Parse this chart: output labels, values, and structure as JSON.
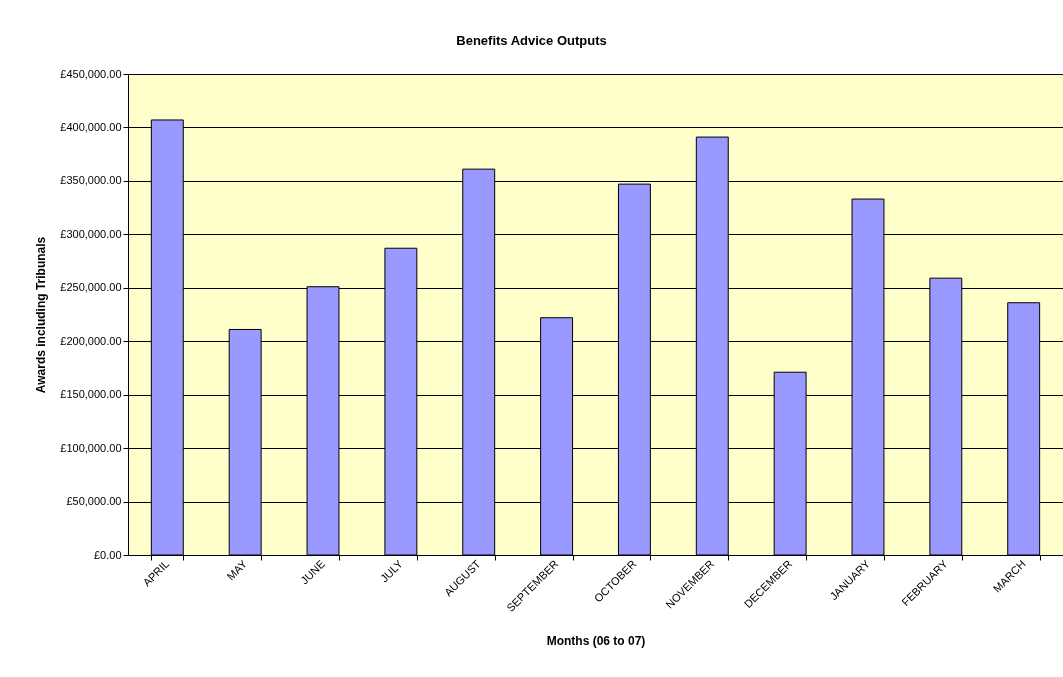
{
  "chart_data": {
    "type": "bar",
    "title": "Benefits Advice Outputs",
    "xlabel": "Months (06 to 07)",
    "ylabel": "Awards including Tribunals",
    "categories": [
      "APRIL",
      "MAY",
      "JUNE",
      "JULY",
      "AUGUST",
      "SEPTEMBER",
      "OCTOBER",
      "NOVEMBER",
      "DECEMBER",
      "JANUARY",
      "FEBRUARY",
      "MARCH"
    ],
    "values": [
      407000,
      211000,
      251000,
      287000,
      361000,
      222000,
      347000,
      391000,
      171000,
      333000,
      259000,
      236000
    ],
    "color": "#9999ff",
    "ylim": [
      0,
      450000
    ],
    "yticks": [
      {
        "value": 0,
        "label": "£0.00"
      },
      {
        "value": 50000,
        "label": "£50,000.00"
      },
      {
        "value": 100000,
        "label": "£100,000.00"
      },
      {
        "value": 150000,
        "label": "£150,000.00"
      },
      {
        "value": 200000,
        "label": "£200,000.00"
      },
      {
        "value": 250000,
        "label": "£250,000.00"
      },
      {
        "value": 300000,
        "label": "£300,000.00"
      },
      {
        "value": 350000,
        "label": "£350,000.00"
      },
      {
        "value": 400000,
        "label": "£400,000.00"
      },
      {
        "value": 450000,
        "label": "£450,000.00"
      }
    ],
    "grid": "y"
  }
}
